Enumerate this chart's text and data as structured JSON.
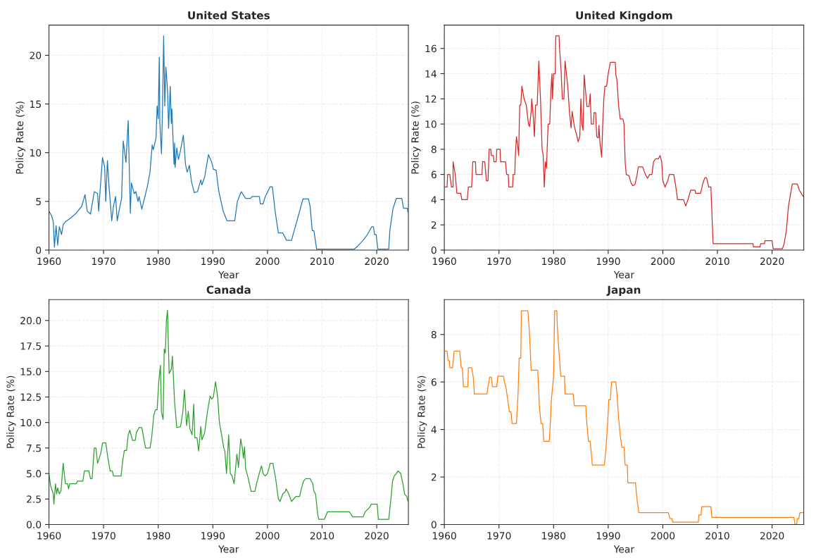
{
  "chart_data": [
    {
      "type": "line",
      "title": "United States",
      "xlabel": "Year",
      "ylabel": "Policy Rate (%)",
      "xlim": [
        1960,
        2025.8
      ],
      "xticks": [
        1960,
        1970,
        1980,
        1990,
        2000,
        2010,
        2020
      ],
      "ylim": [
        0,
        23.1
      ],
      "yticks": [
        0,
        5,
        10,
        15,
        20
      ],
      "grid": true,
      "series": [
        {
          "color": "#1f77b4",
          "x": [
            1960,
            1960.5,
            1960.8,
            1961.0,
            1961.3,
            1961.6,
            1961.9,
            1962.3,
            1962.6,
            1963,
            1964,
            1965,
            1966,
            1966.6,
            1967,
            1967.6,
            1968.3,
            1968.9,
            1969.1,
            1969.8,
            1970.2,
            1970.4,
            1970.7,
            1971.0,
            1971.5,
            1971.8,
            1972.2,
            1972.5,
            1973.0,
            1973.3,
            1973.6,
            1974.1,
            1974.5,
            1974.9,
            1975.1,
            1975.6,
            1975.9,
            1976.3,
            1976.5,
            1977.0,
            1978.0,
            1978.5,
            1978.9,
            1979.1,
            1979.6,
            1979.8,
            1980.0,
            1980.2,
            1980.3,
            1980.6,
            1980.8,
            1981.0,
            1981.2,
            1981.4,
            1981.7,
            1981.9,
            1982.2,
            1982.4,
            1982.5,
            1982.9,
            1983.0,
            1983.1,
            1983.4,
            1983.7,
            1984.0,
            1984.6,
            1985.0,
            1985.3,
            1985.7,
            1986.1,
            1986.6,
            1987.2,
            1987.6,
            1987.8,
            1988.0,
            1988.5,
            1989.2,
            1989.8,
            1990.1,
            1990.6,
            1991.1,
            1991.9,
            1992.6,
            1994.0,
            1994.5,
            1995.2,
            1996.0,
            1996.9,
            1997.2,
            1998.5,
            1998.7,
            1999.2,
            1999.6,
            2000.5,
            2000.9,
            2001.4,
            2002.0,
            2002.8,
            2003.5,
            2004.4,
            2005.4,
            2006.5,
            2007.5,
            2007.8,
            2008.2,
            2008.5,
            2009.0,
            2015.9,
            2016.5,
            2017.5,
            2018.2,
            2019.1,
            2019.4,
            2019.6,
            2019.9,
            2020.2,
            2022.2,
            2022.4,
            2023.0,
            2023.6,
            2024.6,
            2024.9,
            2025.6,
            2025.7
          ],
          "values": [
            4.0,
            3.5,
            2.9,
            0.3,
            2.5,
            0.5,
            2.4,
            1.6,
            2.6,
            2.9,
            3.3,
            3.8,
            4.5,
            5.7,
            4.0,
            3.7,
            6.0,
            5.8,
            4.0,
            9.5,
            8.5,
            5.0,
            9.2,
            6.5,
            3.0,
            4.5,
            5.5,
            3.0,
            4.5,
            5.3,
            11.2,
            9.0,
            13.3,
            3.8,
            6.9,
            5.8,
            6.0,
            5.0,
            5.5,
            4.2,
            6.5,
            8.0,
            10.8,
            10.3,
            11.5,
            14.8,
            13.5,
            19.8,
            13.0,
            9.9,
            15.0,
            22.0,
            14.8,
            18.8,
            16.5,
            12.5,
            16.8,
            13.0,
            14.5,
            8.8,
            11.0,
            8.5,
            10.5,
            9.3,
            10.0,
            11.8,
            8.8,
            8.0,
            8.7,
            7.0,
            5.9,
            6.0,
            6.8,
            7.2,
            6.7,
            7.5,
            9.8,
            9.0,
            8.3,
            8.2,
            6.0,
            4.0,
            3.0,
            3.0,
            5.0,
            6.0,
            5.3,
            5.3,
            5.5,
            5.5,
            4.75,
            4.75,
            5.5,
            6.5,
            6.5,
            4.0,
            1.75,
            1.75,
            1.0,
            1.0,
            3.0,
            5.25,
            5.25,
            4.5,
            2.0,
            2.0,
            0.1,
            0.1,
            0.4,
            1.0,
            1.5,
            2.4,
            2.4,
            1.6,
            1.6,
            0.1,
            0.1,
            2.0,
            4.3,
            5.3,
            5.3,
            4.3,
            4.3,
            3.9
          ]
        }
      ]
    },
    {
      "type": "line",
      "title": "United Kingdom",
      "xlabel": "Year",
      "ylabel": "Policy Rate (%)",
      "xlim": [
        1960,
        2025.8
      ],
      "xticks": [
        1960,
        1970,
        1980,
        1990,
        2000,
        2010,
        2020
      ],
      "ylim": [
        0,
        17.85
      ],
      "yticks": [
        0,
        2,
        4,
        6,
        8,
        10,
        12,
        14,
        16
      ],
      "grid": true,
      "series": [
        {
          "color": "#d62728",
          "x": [
            1960,
            1960.5,
            1960.6,
            1961.0,
            1961.3,
            1961.6,
            1961.6,
            1962.0,
            1962.3,
            1963.0,
            1963.2,
            1964.2,
            1964.4,
            1965.0,
            1965.2,
            1965.7,
            1965.8,
            1966.9,
            1967.0,
            1967.4,
            1967.7,
            1968.0,
            1968.2,
            1968.5,
            1968.6,
            1969.0,
            1969.1,
            1969.5,
            1969.6,
            1970.2,
            1970.3,
            1971.2,
            1971.4,
            1971.7,
            1971.8,
            1972.5,
            1972.6,
            1972.9,
            1973.0,
            1973.2,
            1973.5,
            1973.6,
            1973.8,
            1974.0,
            1974.2,
            1974.6,
            1975.0,
            1975.4,
            1975.6,
            1975.9,
            1976.0,
            1976.3,
            1976.5,
            1976.7,
            1977.0,
            1977.3,
            1977.6,
            1977.9,
            1978.1,
            1978.3,
            1978.5,
            1978.7,
            1979.0,
            1979.3,
            1979.5,
            1979.7,
            1979.8,
            1980.0,
            1980.3,
            1980.4,
            1981.0,
            1981.1,
            1981.4,
            1981.6,
            1981.9,
            1982.1,
            1982.6,
            1982.9,
            1983.2,
            1983.4,
            1983.8,
            1984.3,
            1984.5,
            1984.8,
            1985.0,
            1985.2,
            1985.4,
            1985.6,
            1985.9,
            1986.1,
            1986.5,
            1986.7,
            1986.9,
            1987.3,
            1987.4,
            1987.7,
            1987.9,
            1988.2,
            1988.3,
            1988.5,
            1988.8,
            1989.0,
            1989.2,
            1989.4,
            1989.7,
            1990.0,
            1990.4,
            1991.3,
            1991.4,
            1991.6,
            1991.9,
            1992.2,
            1992.7,
            1992.9,
            1993.1,
            1993.3,
            1993.8,
            1994.2,
            1994.5,
            1994.9,
            1995.3,
            1995.5,
            1996.3,
            1996.8,
            1997.2,
            1997.6,
            1998.0,
            1998.3,
            1998.7,
            1999.2,
            1999.5,
            1999.8,
            2000.0,
            2000.4,
            2000.9,
            2001.2,
            2002.0,
            2002.3,
            2002.7,
            2003.8,
            2004.2,
            2004.6,
            2005.1,
            2005.9,
            2006.0,
            2006.9,
            2007.3,
            2007.7,
            2008.0,
            2008.4,
            2008.8,
            2009.2,
            2016.5,
            2016.6,
            2017.8,
            2017.9,
            2018.6,
            2018.7,
            2020.0,
            2020.2,
            2021.9,
            2022.2,
            2022.6,
            2023.0,
            2023.3,
            2023.7,
            2024.6,
            2025.0,
            2025.7
          ],
          "values": [
            5.0,
            5.0,
            6.0,
            6.0,
            5.0,
            5.0,
            7.0,
            6.0,
            4.5,
            4.5,
            4.0,
            4.0,
            5.0,
            5.0,
            7.0,
            7.0,
            6.0,
            6.0,
            7.0,
            7.0,
            5.5,
            5.5,
            8.0,
            8.0,
            7.5,
            7.5,
            7.0,
            7.0,
            8.0,
            8.0,
            7.0,
            7.0,
            6.0,
            6.0,
            5.0,
            5.0,
            6.0,
            6.0,
            7.5,
            9.0,
            8.0,
            7.5,
            11.5,
            11.5,
            13.0,
            12.0,
            11.5,
            10.0,
            9.8,
            11.0,
            12.0,
            10.5,
            9.0,
            11.5,
            11.5,
            15.0,
            12.0,
            8.0,
            7.5,
            5.0,
            7.0,
            6.5,
            10.0,
            10.0,
            12.5,
            14.0,
            12.0,
            14.0,
            14.0,
            17.0,
            17.0,
            16.0,
            14.0,
            12.0,
            12.0,
            15.0,
            13.0,
            11.0,
            9.7,
            11.0,
            9.8,
            9.0,
            8.6,
            9.0,
            12.0,
            10.0,
            9.5,
            13.9,
            12.4,
            11.4,
            11.4,
            12.4,
            10.0,
            10.0,
            10.9,
            10.9,
            9.0,
            8.9,
            9.9,
            8.5,
            7.4,
            10.0,
            12.0,
            13.0,
            13.0,
            14.0,
            14.9,
            14.9,
            13.9,
            13.5,
            11.5,
            10.4,
            10.4,
            10.0,
            7.0,
            6.0,
            5.9,
            5.3,
            5.1,
            5.2,
            6.0,
            6.6,
            6.6,
            6.0,
            5.7,
            6.0,
            6.0,
            7.0,
            7.25,
            7.25,
            7.5,
            7.0,
            5.5,
            5.0,
            5.5,
            6.0,
            6.0,
            5.25,
            4.0,
            4.0,
            3.5,
            4.0,
            4.75,
            4.75,
            4.5,
            4.5,
            5.25,
            5.75,
            5.75,
            5.0,
            5.0,
            0.5,
            0.5,
            0.25,
            0.25,
            0.5,
            0.5,
            0.75,
            0.75,
            0.1,
            0.1,
            0.5,
            1.5,
            3.5,
            4.25,
            5.25,
            5.25,
            4.75,
            4.25
          ]
        }
      ]
    },
    {
      "type": "line",
      "title": "Canada",
      "xlabel": "Year",
      "ylabel": "Policy Rate (%)",
      "xlim": [
        1960,
        2025.8
      ],
      "xticks": [
        1960,
        1970,
        1980,
        1990,
        2000,
        2010,
        2020
      ],
      "ylim": [
        0,
        22.05
      ],
      "yticks": [
        {
          "value": 0,
          "label": "0.0"
        },
        {
          "value": 2.5,
          "label": "2.5"
        },
        {
          "value": 5,
          "label": "5.0"
        },
        {
          "value": 7.5,
          "label": "7.5"
        },
        {
          "value": 10,
          "label": "10.0"
        },
        {
          "value": 12.5,
          "label": "12.5"
        },
        {
          "value": 15,
          "label": "15.0"
        },
        {
          "value": 17.5,
          "label": "17.5"
        },
        {
          "value": 20,
          "label": "20.0"
        }
      ],
      "grid": true,
      "series": [
        {
          "color": "#2ca02c",
          "x": [
            1960,
            1960.3,
            1960.8,
            1960.9,
            1961.2,
            1961.4,
            1961.6,
            1961.9,
            1962.2,
            1962.6,
            1963.0,
            1963.4,
            1963.6,
            1963.8,
            1965.0,
            1965.2,
            1966.2,
            1966.5,
            1967.3,
            1967.6,
            1967.9,
            1968.3,
            1968.6,
            1968.9,
            1969.5,
            1969.8,
            1970.4,
            1970.8,
            1971.2,
            1971.6,
            1971.8,
            1973.2,
            1973.5,
            1973.8,
            1974.2,
            1974.5,
            1974.8,
            1975.3,
            1975.8,
            1976.0,
            1976.5,
            1977.0,
            1977.5,
            1977.7,
            1978.5,
            1978.8,
            1979.2,
            1979.5,
            1979.8,
            1980.1,
            1980.4,
            1980.6,
            1980.9,
            1981.1,
            1981.3,
            1981.5,
            1981.7,
            1982.0,
            1982.4,
            1982.6,
            1983.0,
            1983.4,
            1984.1,
            1984.5,
            1984.8,
            1985.2,
            1985.5,
            1985.8,
            1986.2,
            1986.5,
            1986.7,
            1987.1,
            1987.4,
            1987.8,
            1988.0,
            1988.5,
            1989.0,
            1989.5,
            1989.8,
            1990.1,
            1990.5,
            1990.9,
            1991.2,
            1991.6,
            1992.0,
            1992.2,
            1992.5,
            1992.9,
            1993.2,
            1993.5,
            1993.9,
            1994.4,
            1994.7,
            1995.1,
            1995.4,
            1995.6,
            1995.8,
            1996.0,
            1996.5,
            1997.0,
            1997.7,
            1998.0,
            1998.5,
            1998.9,
            1999.2,
            1999.6,
            2000.0,
            2000.5,
            2001.0,
            2001.5,
            2002.0,
            2002.3,
            2002.8,
            2003.3,
            2003.4,
            2003.9,
            2004.4,
            2004.8,
            2005.2,
            2005.9,
            2006.2,
            2006.6,
            2007.0,
            2007.8,
            2008.3,
            2008.5,
            2008.8,
            2009.2,
            2009.4,
            2010.4,
            2010.8,
            2011.0,
            2015.0,
            2015.3,
            2015.6,
            2017.5,
            2017.9,
            2018.4,
            2018.8,
            2019.0,
            2020.1,
            2020.3,
            2022.2,
            2022.6,
            2022.9,
            2023.2,
            2023.6,
            2023.9,
            2024.4,
            2024.8,
            2025.1,
            2025.5,
            2025.7
          ],
          "values": [
            5.0,
            3.8,
            3.0,
            2.0,
            4.0,
            3.0,
            3.6,
            3.0,
            3.3,
            6.0,
            4.0,
            4.0,
            3.5,
            4.0,
            4.0,
            4.25,
            4.25,
            5.25,
            5.25,
            4.5,
            4.5,
            7.5,
            7.5,
            6.0,
            7.0,
            8.0,
            8.0,
            6.5,
            5.25,
            5.25,
            4.75,
            4.75,
            6.25,
            7.25,
            7.25,
            8.75,
            9.25,
            8.25,
            8.25,
            9.0,
            9.5,
            9.5,
            8.0,
            7.5,
            7.5,
            8.5,
            10.75,
            11.25,
            11.25,
            14.0,
            15.6,
            11.0,
            10.3,
            17.2,
            16.8,
            20.0,
            21.0,
            14.8,
            15.2,
            16.5,
            12.0,
            9.5,
            9.6,
            11.0,
            13.2,
            9.7,
            11.1,
            9.4,
            8.8,
            11.8,
            8.5,
            8.5,
            7.2,
            9.6,
            8.3,
            9.0,
            11.0,
            12.6,
            12.3,
            12.5,
            14.0,
            12.4,
            10.0,
            8.8,
            7.5,
            7.2,
            5.0,
            8.8,
            5.0,
            4.8,
            4.0,
            6.9,
            5.6,
            8.4,
            7.5,
            6.5,
            7.6,
            5.5,
            4.5,
            3.25,
            3.25,
            4.0,
            5.0,
            5.75,
            5.0,
            4.75,
            5.0,
            6.0,
            6.0,
            4.5,
            2.5,
            2.25,
            3.0,
            3.25,
            3.5,
            3.0,
            2.25,
            2.5,
            2.75,
            2.75,
            3.5,
            4.25,
            4.5,
            4.5,
            4.0,
            3.25,
            3.0,
            1.0,
            0.5,
            0.5,
            1.0,
            1.25,
            1.25,
            1.0,
            0.75,
            0.75,
            1.25,
            1.5,
            1.75,
            2.0,
            2.0,
            0.5,
            0.5,
            2.5,
            4.25,
            4.75,
            5.0,
            5.25,
            5.0,
            4.0,
            3.0,
            2.75,
            2.3
          ]
        }
      ]
    },
    {
      "type": "line",
      "title": "Japan",
      "xlabel": "Year",
      "ylabel": "Policy Rate (%)",
      "xlim": [
        1960,
        2025.8
      ],
      "xticks": [
        1960,
        1970,
        1980,
        1990,
        2000,
        2010,
        2020
      ],
      "ylim": [
        0,
        9.47
      ],
      "yticks": [
        0,
        2,
        4,
        6,
        8
      ],
      "grid": true,
      "series": [
        {
          "color": "#ff7f0e",
          "x": [
            1960,
            1960.5,
            1960.7,
            1960.9,
            1961.0,
            1961.5,
            1961.8,
            1962.8,
            1963.1,
            1963.3,
            1963.5,
            1964.3,
            1964.4,
            1965.0,
            1965.3,
            1965.5,
            1967.8,
            1968.0,
            1968.3,
            1968.6,
            1968.8,
            1969.6,
            1969.8,
            1970.8,
            1971.0,
            1971.3,
            1971.6,
            1971.9,
            1972.2,
            1972.4,
            1973.2,
            1973.5,
            1973.7,
            1974.0,
            1974.1,
            1975.3,
            1975.6,
            1975.9,
            1977.1,
            1977.4,
            1977.7,
            1978.0,
            1978.2,
            1979.2,
            1979.4,
            1979.6,
            1980.0,
            1980.2,
            1980.6,
            1980.7,
            1981.0,
            1981.3,
            1982.0,
            1982.1,
            1983.6,
            1983.8,
            1985.9,
            1986.0,
            1986.4,
            1986.7,
            1986.9,
            1987.1,
            1989.3,
            1989.6,
            1989.9,
            1990.1,
            1990.4,
            1990.6,
            1991.4,
            1991.6,
            1991.9,
            1992.2,
            1992.5,
            1992.9,
            1993.1,
            1993.5,
            1993.6,
            1995.0,
            1995.3,
            1995.6,
            2001.0,
            2001.3,
            2001.7,
            2001.8,
            2006.5,
            2006.6,
            2007.0,
            2007.1,
            2008.8,
            2009.0,
            2024.0,
            2024.2,
            2024.5,
            2024.6,
            2024.9,
            2025.1,
            2025.7
          ],
          "values": [
            7.3,
            7.3,
            6.9,
            6.9,
            6.6,
            6.6,
            7.3,
            7.3,
            6.6,
            6.6,
            5.8,
            5.8,
            6.6,
            6.6,
            6.2,
            5.5,
            5.5,
            5.8,
            6.2,
            6.2,
            5.8,
            5.8,
            6.25,
            6.25,
            6.0,
            5.75,
            5.25,
            4.75,
            4.75,
            4.25,
            4.25,
            5.5,
            7.0,
            7.0,
            9.0,
            9.0,
            8.0,
            6.5,
            6.5,
            5.0,
            4.25,
            4.25,
            3.5,
            3.5,
            4.25,
            5.25,
            6.25,
            9.0,
            9.0,
            8.25,
            7.25,
            6.25,
            6.25,
            5.5,
            5.5,
            5.0,
            5.0,
            4.5,
            3.5,
            3.5,
            3.0,
            2.5,
            2.5,
            3.25,
            4.25,
            5.25,
            5.25,
            6.0,
            6.0,
            5.5,
            4.5,
            3.75,
            3.25,
            3.25,
            2.5,
            2.5,
            1.75,
            1.75,
            1.0,
            0.5,
            0.5,
            0.25,
            0.25,
            0.1,
            0.1,
            0.4,
            0.4,
            0.75,
            0.75,
            0.3,
            0.3,
            0.0,
            0.0,
            0.25,
            0.25,
            0.5,
            0.5
          ]
        }
      ]
    }
  ]
}
